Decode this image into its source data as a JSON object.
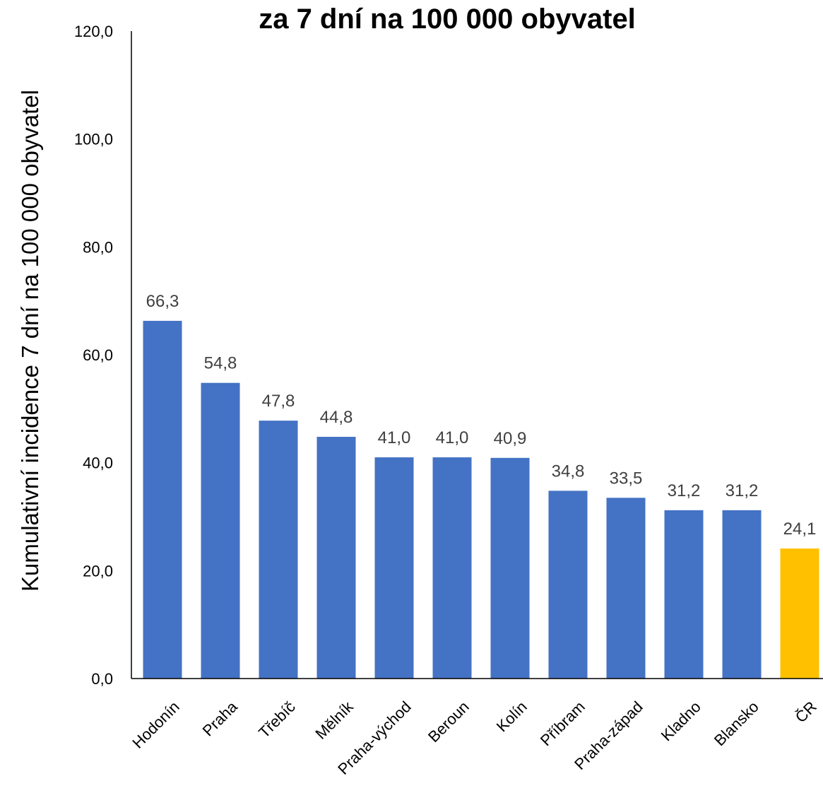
{
  "chart_data": {
    "type": "bar",
    "title": "za 7 dní na 100 000 obyvatel",
    "xlabel": "",
    "ylabel": "Kumulativní incidence 7 dní na 100 000 obyvatel",
    "ylim": [
      0,
      120
    ],
    "yticks": [
      "0,0",
      "20,0",
      "40,0",
      "60,0",
      "80,0",
      "100,0",
      "120,0"
    ],
    "grid": false,
    "legend": "none",
    "categories": [
      "Hodonín",
      "Praha",
      "Třebíč",
      "Mělník",
      "Praha-východ",
      "Beroun",
      "Kolín",
      "Příbram",
      "Praha-západ",
      "Kladno",
      "Blansko",
      "ČR"
    ],
    "values": [
      66.3,
      54.8,
      47.8,
      44.8,
      41.0,
      41.0,
      40.9,
      34.8,
      33.5,
      31.2,
      31.2,
      24.1
    ],
    "value_labels": [
      "66,3",
      "54,8",
      "47,8",
      "44,8",
      "41,0",
      "41,0",
      "40,9",
      "34,8",
      "33,5",
      "31,2",
      "31,2",
      "24,1"
    ],
    "colors": {
      "default_bar": "#4472C4",
      "highlight_bar": "#FFC000",
      "highlight_category": "ČR",
      "axis": "#000000",
      "value_label": "#404040"
    }
  }
}
